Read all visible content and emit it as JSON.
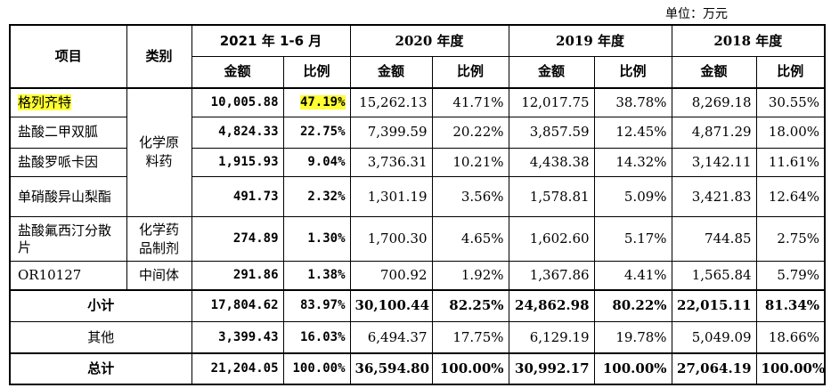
{
  "unit_label": "单位：万元",
  "headers": {
    "item": "项目",
    "category": "类别",
    "periods": [
      "2021 年 1-6 月",
      "2020 年度",
      "2019 年度",
      "2018 年度"
    ],
    "amount": "金额",
    "ratio": "比例"
  },
  "rows": [
    {
      "name": "格列齐特",
      "values": [
        "10,005.88",
        "47.19%",
        "15,262.13",
        "41.71%",
        "12,017.75",
        "38.78%",
        "8,269.18",
        "30.55%"
      ]
    },
    {
      "name": "盐酸二甲双胍",
      "values": [
        "4,824.33",
        "22.75%",
        "7,399.59",
        "20.22%",
        "3,857.59",
        "12.45%",
        "4,871.29",
        "18.00%"
      ]
    },
    {
      "name": "盐酸罗哌卡因",
      "values": [
        "1,915.93",
        "9.04%",
        "3,736.31",
        "10.21%",
        "4,438.38",
        "14.32%",
        "3,142.11",
        "11.61%"
      ]
    },
    {
      "name": "单硝酸异山梨酯",
      "values": [
        "491.73",
        "2.32%",
        "1,301.19",
        "3.56%",
        "1,578.81",
        "5.09%",
        "3,421.83",
        "12.64%"
      ]
    },
    {
      "name": "盐酸氟西汀分散片",
      "values": [
        "274.89",
        "1.30%",
        "1,700.30",
        "4.65%",
        "1,602.60",
        "5.17%",
        "744.85",
        "2.75%"
      ]
    },
    {
      "name": "OR10127",
      "values": [
        "291.86",
        "1.38%",
        "700.92",
        "1.92%",
        "1,367.86",
        "4.41%",
        "1,565.84",
        "5.79%"
      ]
    },
    {
      "name": "小计",
      "values": [
        "17,804.62",
        "83.97%",
        "30,100.44",
        "82.25%",
        "24,862.98",
        "80.22%",
        "22,015.11",
        "81.34%"
      ]
    },
    {
      "name": "其他",
      "values": [
        "3,399.43",
        "16.03%",
        "6,494.37",
        "17.75%",
        "6,129.19",
        "19.78%",
        "5,049.09",
        "18.66%"
      ]
    },
    {
      "name": "总计",
      "values": [
        "21,204.05",
        "100.00%",
        "36,594.80",
        "100.00%",
        "30,992.17",
        "100.00%",
        "27,064.19",
        "100.00%"
      ]
    }
  ],
  "categories": {
    "api": "化学原料药",
    "prep": "化学药品制剂",
    "intermediate": "中间体"
  },
  "highlight_color": "#ffff33"
}
